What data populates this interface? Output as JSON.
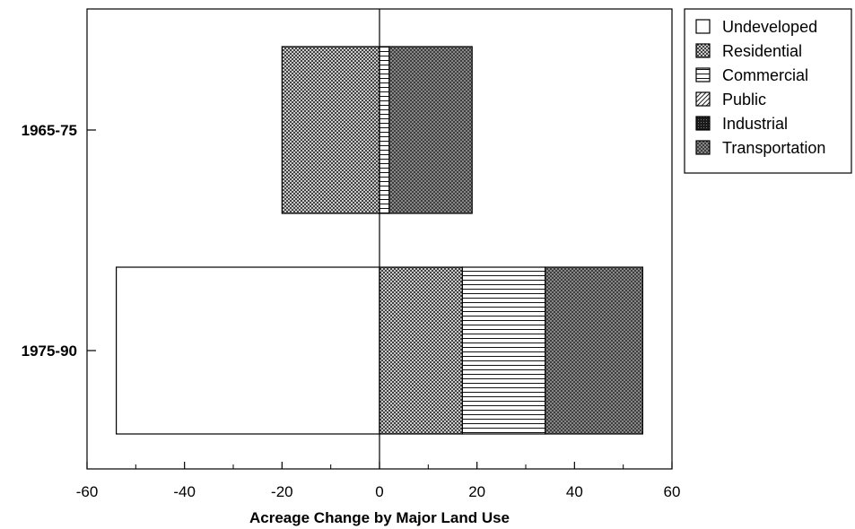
{
  "chart_data": {
    "type": "bar",
    "orientation": "horizontal",
    "stacked": "diverging",
    "categories": [
      "1965-75",
      "1975-90"
    ],
    "xlabel": "Acreage Change by Major Land Use",
    "ylabel": "",
    "xlim": [
      -60,
      60
    ],
    "xticks": [
      -60,
      -40,
      -20,
      0,
      20,
      40,
      60
    ],
    "grid": false,
    "legend_position": "top-right, outside plot",
    "series": [
      {
        "name": "Undeveloped",
        "pattern": "empty",
        "values": [
          0,
          -54
        ]
      },
      {
        "name": "Residential",
        "pattern": "crosshatch",
        "values": [
          -20,
          17
        ]
      },
      {
        "name": "Commercial",
        "pattern": "horizontal-lines",
        "values": [
          2,
          17
        ]
      },
      {
        "name": "Public",
        "pattern": "diagonal-lines",
        "values": [
          0,
          0
        ]
      },
      {
        "name": "Industrial",
        "pattern": "dense-dark",
        "values": [
          0,
          0
        ]
      },
      {
        "name": "Transportation",
        "pattern": "dark-crosshatch",
        "values": [
          17,
          20
        ]
      }
    ]
  }
}
